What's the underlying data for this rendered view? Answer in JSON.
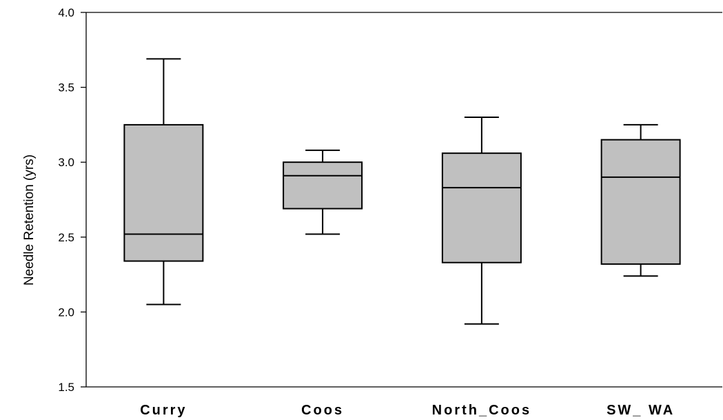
{
  "chart_data": {
    "type": "box",
    "ylabel": "Needle Retention (yrs)",
    "ylim": [
      1.5,
      4.0
    ],
    "yticks": [
      "1.5",
      "2.0",
      "2.5",
      "3.0",
      "3.5",
      "4.0"
    ],
    "categories": [
      "Curry",
      "Coos",
      "North_Coos",
      "SW_ WA"
    ],
    "boxes": [
      {
        "category": "Curry",
        "whisker_low": 2.05,
        "q1": 2.34,
        "median": 2.52,
        "q3": 3.25,
        "whisker_high": 3.69
      },
      {
        "category": "Coos",
        "whisker_low": 2.52,
        "q1": 2.69,
        "median": 2.91,
        "q3": 3.0,
        "whisker_high": 3.08
      },
      {
        "category": "North_Coos",
        "whisker_low": 1.92,
        "q1": 2.33,
        "median": 2.83,
        "q3": 3.06,
        "whisker_high": 3.3
      },
      {
        "category": "SW_ WA",
        "whisker_low": 2.24,
        "q1": 2.32,
        "median": 2.9,
        "q3": 3.15,
        "whisker_high": 3.25
      }
    ],
    "grid": false,
    "legend": "none"
  }
}
